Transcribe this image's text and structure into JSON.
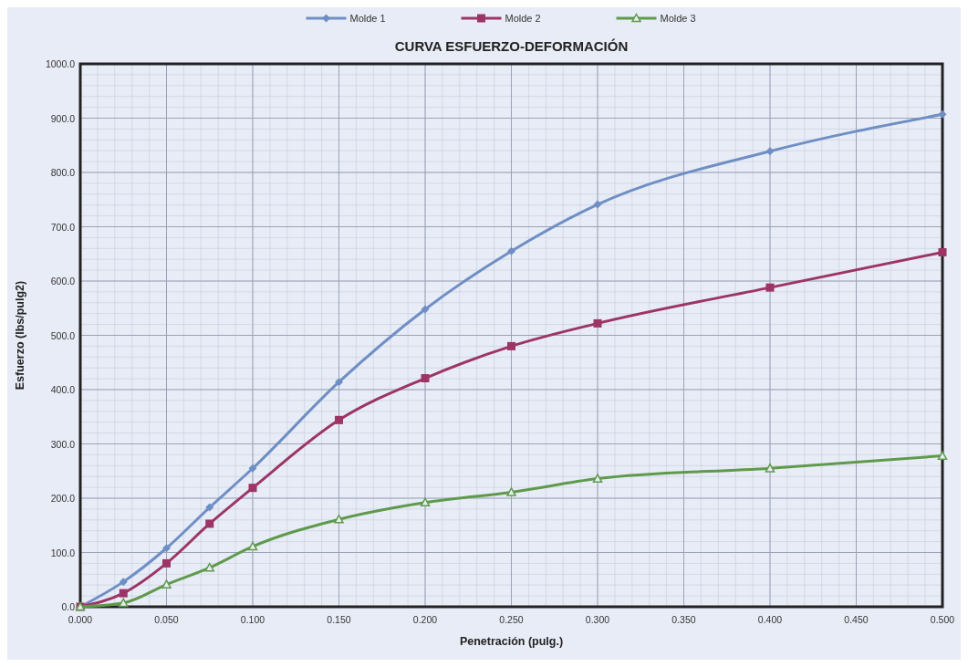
{
  "chart_data": {
    "type": "line",
    "title": "CURVA ESFUERZO-DEFORMACIÓN",
    "xlabel": "Penetración (pulg.)",
    "ylabel": "Esfuerzo (lbs/pulg2)",
    "x": [
      0,
      0.025,
      0.05,
      0.075,
      0.1,
      0.15,
      0.2,
      0.25,
      0.3,
      0.4,
      0.5
    ],
    "series": [
      {
        "name": "Molde 1",
        "color": "#6f8fc4",
        "marker": "diamond",
        "values": [
          0,
          46,
          108,
          183,
          255,
          414,
          548,
          655,
          741,
          839,
          907
        ]
      },
      {
        "name": "Molde 2",
        "color": "#9c3566",
        "marker": "square",
        "values": [
          0,
          25,
          80,
          153,
          219,
          344,
          421,
          480,
          522,
          588,
          653
        ]
      },
      {
        "name": "Molde 3",
        "color": "#5f9a4c",
        "marker": "triangle",
        "values": [
          0,
          7,
          41,
          72,
          111,
          161,
          192,
          211,
          236,
          255,
          278
        ]
      }
    ],
    "xlim": [
      0,
      0.5
    ],
    "ylim": [
      0,
      1000
    ],
    "xticks": [
      {
        "value": 0,
        "label": "0.000"
      },
      {
        "value": 0.05,
        "label": "0.050"
      },
      {
        "value": 0.1,
        "label": "0.100"
      },
      {
        "value": 0.15,
        "label": "0.150"
      },
      {
        "value": 0.2,
        "label": "0.200"
      },
      {
        "value": 0.25,
        "label": "0.250"
      },
      {
        "value": 0.3,
        "label": "0.300"
      },
      {
        "value": 0.35,
        "label": "0.350"
      },
      {
        "value": 0.4,
        "label": "0.400"
      },
      {
        "value": 0.45,
        "label": "0.450"
      },
      {
        "value": 0.5,
        "label": "0.500"
      }
    ],
    "yticks": [
      {
        "value": 0,
        "label": "0.0"
      },
      {
        "value": 100,
        "label": "100.0"
      },
      {
        "value": 200,
        "label": "200.0"
      },
      {
        "value": 300,
        "label": "300.0"
      },
      {
        "value": 400,
        "label": "400.0"
      },
      {
        "value": 500,
        "label": "500.0"
      },
      {
        "value": 600,
        "label": "600.0"
      },
      {
        "value": 700,
        "label": "700.0"
      },
      {
        "value": 800,
        "label": "800.0"
      },
      {
        "value": 900,
        "label": "900.0"
      },
      {
        "value": 1000,
        "label": "1000.0"
      }
    ],
    "grid": true,
    "legend": "top",
    "line_style": "solid"
  }
}
